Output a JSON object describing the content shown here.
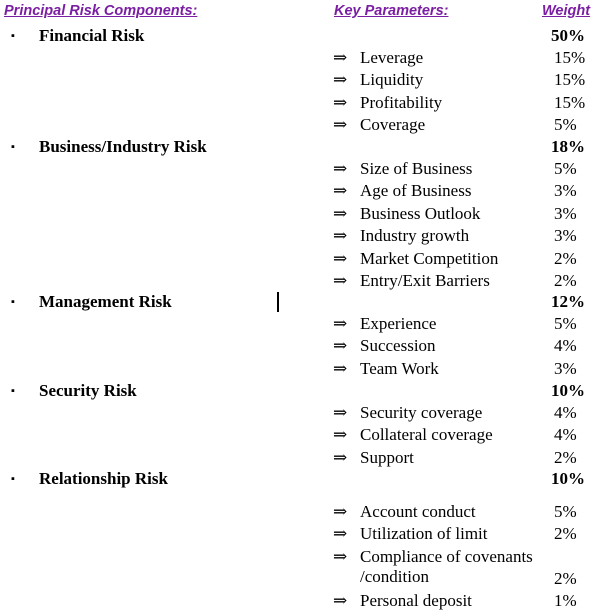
{
  "header": {
    "risk_components": "Principal Risk Components:",
    "key_parameters": "Key Parameters:",
    "weight": "Weight",
    "color": "#7b1fa2"
  },
  "arrow_glyph": "⇒",
  "bullet_glyph": "▪",
  "categories": [
    {
      "label": "Financial Risk",
      "weight": "50%",
      "parameters": [
        {
          "label": "Leverage",
          "weight": "15%"
        },
        {
          "label": "Liquidity",
          "weight": "15%"
        },
        {
          "label": "Profitability",
          "weight": "15%"
        },
        {
          "label": "Coverage",
          "weight": "5%"
        }
      ]
    },
    {
      "label": "Business/Industry Risk",
      "weight": "18%",
      "parameters": [
        {
          "label": "Size of Business",
          "weight": "5%"
        },
        {
          "label": "Age of Business",
          "weight": "3%"
        },
        {
          "label": "Business Outlook",
          "weight": "3%"
        },
        {
          "label": "Industry growth",
          "weight": "3%"
        },
        {
          "label": "Market Competition",
          "weight": "2%"
        },
        {
          "label": "Entry/Exit Barriers",
          "weight": "2%"
        }
      ]
    },
    {
      "label": "Management Risk",
      "weight": "12%",
      "parameters": [
        {
          "label": "Experience",
          "weight": "5%"
        },
        {
          "label": "Succession",
          "weight": "4%"
        },
        {
          "label": "Team Work",
          "weight": "3%"
        }
      ]
    },
    {
      "label": "Security Risk",
      "weight": "10%",
      "parameters": [
        {
          "label": "Security coverage",
          "weight": "4%"
        },
        {
          "label": "Collateral coverage",
          "weight": "4%"
        },
        {
          "label": "Support",
          "weight": "2%"
        }
      ]
    },
    {
      "label": "Relationship Risk",
      "weight": "10%",
      "parameters": [
        {
          "label": "Account conduct",
          "weight": "5%"
        },
        {
          "label": "Utilization of limit",
          "weight": "2%"
        },
        {
          "label": "Compliance of covenants /condition",
          "weight": "2%"
        },
        {
          "label": "Personal deposit",
          "weight": "1%"
        }
      ]
    }
  ]
}
